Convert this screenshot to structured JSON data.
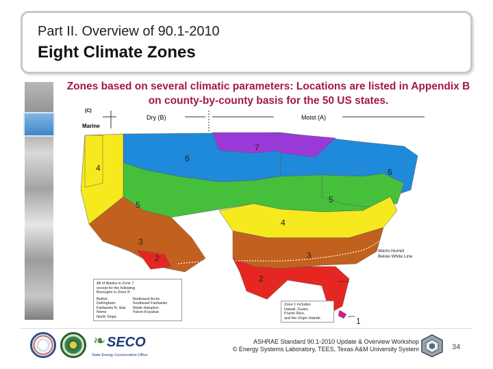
{
  "title": {
    "line1": "Part II. Overview of 90.1-2010",
    "line2": "Eight Climate Zones"
  },
  "subtitle": "Zones based on several climatic parameters: Locations are listed in Appendix B on county-by-county basis for  the 50 US states.",
  "map": {
    "top_labels": {
      "c": "(C)",
      "marine": "Marine",
      "dry": "Dry (B)",
      "moist": "Moist (A)"
    },
    "zone_labels": [
      "1",
      "2",
      "2",
      "3",
      "3",
      "4",
      "4",
      "5",
      "5",
      "6",
      "6",
      "7"
    ],
    "zone_colors": {
      "z1": "#d81b8c",
      "z2": "#e52621",
      "z3": "#c2611e",
      "z4": "#f6e91e",
      "z5": "#46bf3b",
      "z6": "#1e8ad9",
      "z7": "#9b39d8",
      "z4c": "#f6e91e"
    },
    "warm_humid": [
      "Warm-Humid",
      "Below White Line"
    ],
    "alaska_note": {
      "line1": "All of Alaska in Zone 7",
      "line2": "except for the following",
      "line3": "Boroughs in Zone 8:",
      "col1": [
        "Bethel",
        "Dellingham",
        "Fairbanks N. Star",
        "Nome",
        "North Slope"
      ],
      "col2": [
        "Northwest Arctic",
        "Southeast Fairbanks",
        "Wade Hampton",
        "Yukon-Koyukuk"
      ]
    },
    "zone1_note": [
      "Zone 1 includes",
      "Hawaii, Guam,",
      "Puerto Rico,",
      "and the Virgin Islands"
    ]
  },
  "footer": {
    "line1": "ASHRAE Standard 90.1-2010 Update & Overview  Workshop",
    "line2": "© Energy Systems Laboratory, TEES, Texas A&M University System",
    "page": "34",
    "seco_word": "SECO",
    "seco_sub": "State Energy Conservation Office"
  }
}
